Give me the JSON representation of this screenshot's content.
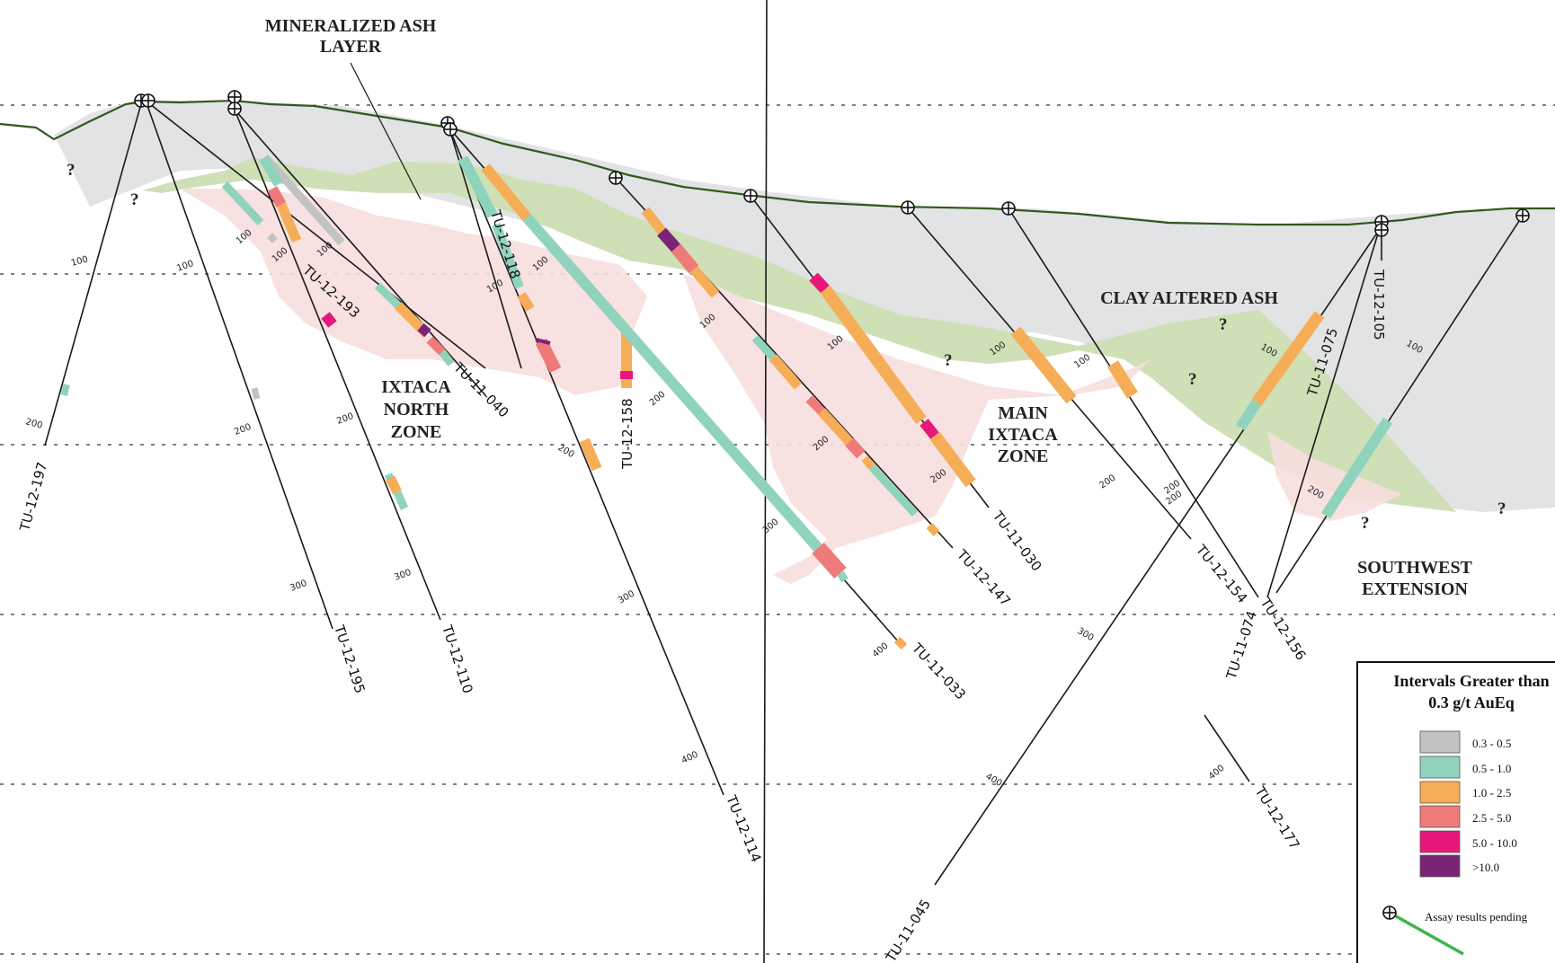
{
  "labels": {
    "mineralized_ash_1": "MINERALIZED ASH",
    "mineralized_ash_2": "LAYER",
    "clay_altered_ash": "CLAY ALTERED ASH",
    "ixtaca_north_1": "IXTACA",
    "ixtaca_north_2": "NORTH",
    "ixtaca_north_3": "ZONE",
    "main_ixtaca_1": "MAIN",
    "main_ixtaca_2": "IXTACA",
    "main_ixtaca_3": "ZONE",
    "southwest_1": "SOUTHWEST",
    "southwest_2": "EXTENSION",
    "question": "?"
  },
  "holes": {
    "tu12197": "TU-12-197",
    "tu12195": "TU-12-195",
    "tu12193": "TU-12-193",
    "tu12110": "TU-12-110",
    "tu11040": "TU-11-040",
    "tu12118": "TU-12-118",
    "tu12114": "TU-12-114",
    "tu12158": "TU-12-158",
    "tu11033": "TU-11-033",
    "tu12147": "TU-12-147",
    "tu11030": "TU-11-030",
    "tu12154": "TU-12-154",
    "tu12156": "TU-12-156",
    "tu11074": "TU-11-074",
    "tu11075": "TU-11-075",
    "tu12105": "TU-12-105",
    "tu11045": "TU-11-045",
    "tu12177": "TU-12-177"
  },
  "depths": {
    "d100": "100",
    "d200": "200",
    "d300": "300",
    "d400": "400"
  },
  "legend": {
    "title_1": "Intervals Greater than",
    "title_2": "0.3 g/t AuEq",
    "items": [
      {
        "label": "0.3 - 0.5",
        "color": "#c2c2c2"
      },
      {
        "label": "0.5 - 1.0",
        "color": "#8fd3bd"
      },
      {
        "label": "1.0 - 2.5",
        "color": "#f6ad57"
      },
      {
        "label": "2.5 - 5.0",
        "color": "#ef7a7a"
      },
      {
        "label": "5.0 - 10.0",
        "color": "#e8177c"
      },
      {
        "label": ">10.0",
        "color": "#7a2478"
      }
    ],
    "pending": "Assay results pending"
  },
  "colors": {
    "topography": "#2f5a1d",
    "ash_gray": "#e2e3e5",
    "ash_green": "#cfe0b6",
    "zone_pink": "#f7dede",
    "pending_line": "#3cb54a"
  }
}
